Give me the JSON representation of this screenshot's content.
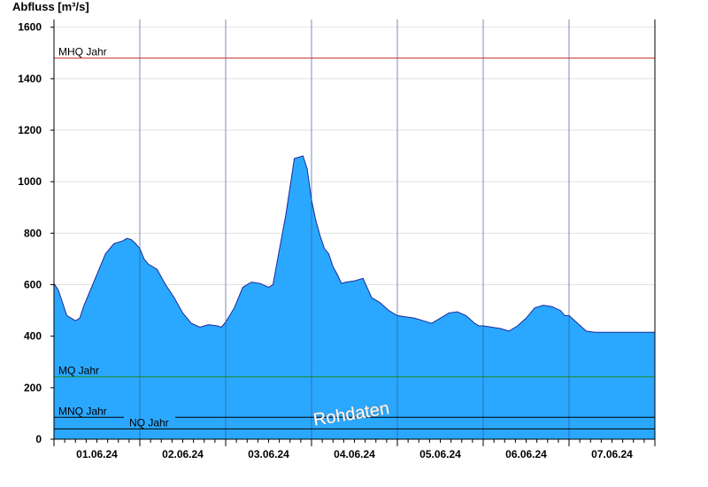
{
  "chart_data": {
    "type": "area",
    "ylabel": "Abfluss [m³/s]",
    "ylim": [
      0,
      1630
    ],
    "yticks": [
      0,
      200,
      400,
      600,
      800,
      1000,
      1200,
      1400,
      1600
    ],
    "xlim": [
      0,
      7
    ],
    "x_tick_labels": [
      "01.06.24",
      "02.06.24",
      "03.06.24",
      "04.06.24",
      "05.06.24",
      "06.06.24",
      "07.06.24"
    ],
    "x_unit": "days",
    "grid": true,
    "colors": {
      "fill": "#2aa8ff",
      "outline": "#1a2a9a",
      "mhq": "#cc2b2b",
      "mq": "#1f8a2a",
      "mnq": "#000000",
      "nq": "#000000"
    },
    "reference_lines": [
      {
        "label": "MHQ Jahr",
        "value": 1480
      },
      {
        "label": "MQ Jahr",
        "value": 242
      },
      {
        "label": "MNQ Jahr",
        "value": 85
      },
      {
        "label": "NQ Jahr",
        "value": 40
      }
    ],
    "watermark": "Rohdaten",
    "series": [
      {
        "x": [
          0.0,
          0.05,
          0.1,
          0.15,
          0.2,
          0.25,
          0.3,
          0.35,
          0.4,
          0.5,
          0.6,
          0.7,
          0.8,
          0.85,
          0.9,
          0.95,
          1.0,
          1.05,
          1.1,
          1.2,
          1.3,
          1.4,
          1.5,
          1.6,
          1.7,
          1.8,
          1.9,
          1.95,
          2.0,
          2.1,
          2.2,
          2.3,
          2.4,
          2.5,
          2.55,
          2.6,
          2.7,
          2.8,
          2.9,
          2.95,
          3.0,
          3.05,
          3.1,
          3.15,
          3.2,
          3.25,
          3.3,
          3.35,
          3.4,
          3.5,
          3.6,
          3.7,
          3.8,
          3.9,
          3.95,
          4.0,
          4.1,
          4.2,
          4.3,
          4.4,
          4.5,
          4.6,
          4.7,
          4.8,
          4.9,
          4.95,
          5.0,
          5.1,
          5.2,
          5.3,
          5.4,
          5.5,
          5.6,
          5.7,
          5.8,
          5.9,
          5.95,
          6.0,
          6.1,
          6.2,
          6.3,
          6.4,
          6.5,
          6.6,
          6.7,
          6.8,
          6.9,
          7.0
        ],
        "y": [
          605,
          580,
          530,
          480,
          470,
          460,
          470,
          520,
          560,
          640,
          720,
          760,
          770,
          780,
          775,
          760,
          740,
          700,
          680,
          660,
          600,
          550,
          490,
          450,
          435,
          445,
          440,
          435,
          455,
          510,
          590,
          610,
          605,
          590,
          600,
          690,
          870,
          1090,
          1100,
          1050,
          930,
          850,
          790,
          740,
          720,
          670,
          640,
          605,
          610,
          615,
          625,
          550,
          530,
          500,
          490,
          480,
          475,
          470,
          460,
          450,
          470,
          490,
          495,
          480,
          450,
          440,
          440,
          435,
          430,
          420,
          440,
          470,
          510,
          520,
          515,
          500,
          480,
          480,
          450,
          420,
          415,
          415,
          415,
          415,
          415,
          415,
          415,
          415
        ]
      }
    ]
  }
}
